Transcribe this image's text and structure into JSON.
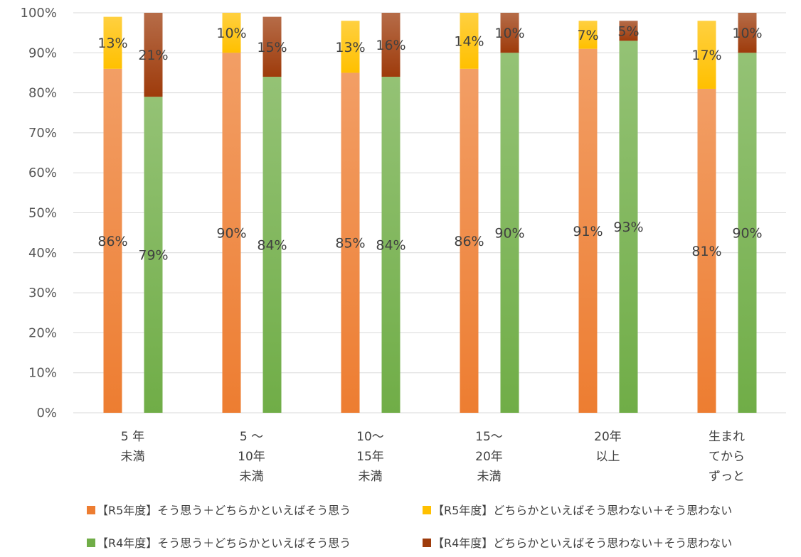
{
  "chart_data": {
    "type": "bar",
    "stacked": true,
    "ylim": [
      0,
      100
    ],
    "yticks": [
      "0%",
      "10%",
      "20%",
      "30%",
      "40%",
      "50%",
      "60%",
      "70%",
      "80%",
      "90%",
      "100%"
    ],
    "grid": true,
    "legend_position": "bottom",
    "categories": [
      [
        "5 年",
        "未満"
      ],
      [
        "5 ～",
        "10年",
        "未満"
      ],
      [
        "10～",
        "15年",
        "未満"
      ],
      [
        "15～",
        "20年",
        "未満"
      ],
      [
        "20年",
        "以上"
      ],
      [
        "生まれ",
        "てから",
        "ずっと"
      ]
    ],
    "groups": [
      {
        "name": "R5",
        "series": [
          {
            "name": "【R5年度】そう思う＋どちらかといえばそう思う",
            "color": "#ed7d31",
            "values": [
              86,
              90,
              85,
              86,
              91,
              81
            ],
            "labels": [
              "86%",
              "90%",
              "85%",
              "86%",
              "91%",
              "81%"
            ]
          },
          {
            "name": "【R5年度】どちらかといえばそう思わない＋そう思わない",
            "color": "#ffc000",
            "values": [
              13,
              10,
              13,
              14,
              7,
              17
            ],
            "labels": [
              "13%",
              "10%",
              "13%",
              "14%",
              "7%",
              "17%"
            ]
          }
        ]
      },
      {
        "name": "R4",
        "series": [
          {
            "name": "【R4年度】そう思う＋どちらかといえばそう思う",
            "color": "#70ad47",
            "values": [
              79,
              84,
              84,
              90,
              93,
              90
            ],
            "labels": [
              "79%",
              "84%",
              "84%",
              "90%",
              "93%",
              "90%"
            ]
          },
          {
            "name": "【R4年度】どちらかといえばそう思わない＋そう思わない",
            "color": "#9e3b0b",
            "values": [
              21,
              15,
              16,
              10,
              5,
              10
            ],
            "labels": [
              "21%",
              "15%",
              "16%",
              "10%",
              "5%",
              "10%"
            ]
          }
        ]
      }
    ]
  }
}
